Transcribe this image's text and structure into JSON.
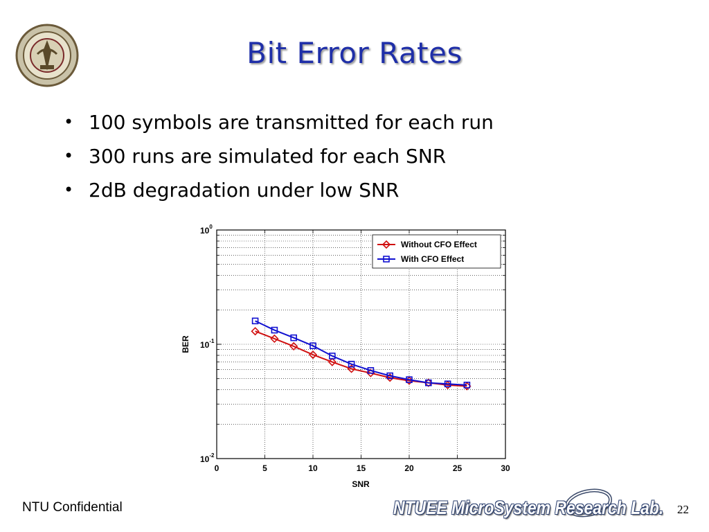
{
  "slide": {
    "title": "Bit Error Rates",
    "bullets": [
      "100 symbols are transmitted for each run",
      "300 runs are simulated for each SNR",
      "2dB degradation under low SNR"
    ],
    "footer_left": "NTU Confidential",
    "lab_name": "NTUEE MicroSystem Research Lab.",
    "page_number": "22",
    "colors": {
      "title": "#1f2fa8",
      "series_without": "#d01010",
      "series_with": "#1010d0"
    },
    "logo_icon": "university-seal-icon"
  },
  "chart_data": {
    "type": "line",
    "xlabel": "SNR",
    "ylabel": "BER",
    "xlim": [
      0,
      30
    ],
    "ylim": [
      0.01,
      1
    ],
    "yscale": "log",
    "grid": true,
    "legend_position": "top-right",
    "xticks": [
      "0",
      "5",
      "10",
      "15",
      "20",
      "25",
      "30"
    ],
    "yticks": [
      {
        "base": "10",
        "exp": "0"
      },
      {
        "base": "10",
        "exp": "-1"
      },
      {
        "base": "10",
        "exp": "-2"
      }
    ],
    "x": [
      4,
      6,
      8,
      10,
      12,
      14,
      16,
      18,
      20,
      22,
      24,
      26
    ],
    "series": [
      {
        "name": "Without CFO Effect",
        "marker": "diamond",
        "color": "#d01010",
        "values": [
          0.13,
          0.112,
          0.096,
          0.081,
          0.07,
          0.061,
          0.056,
          0.051,
          0.048,
          0.046,
          0.044,
          0.043
        ]
      },
      {
        "name": "With CFO Effect",
        "marker": "square",
        "color": "#1010d0",
        "values": [
          0.16,
          0.133,
          0.114,
          0.097,
          0.079,
          0.067,
          0.059,
          0.053,
          0.049,
          0.046,
          0.045,
          0.044
        ]
      }
    ]
  }
}
